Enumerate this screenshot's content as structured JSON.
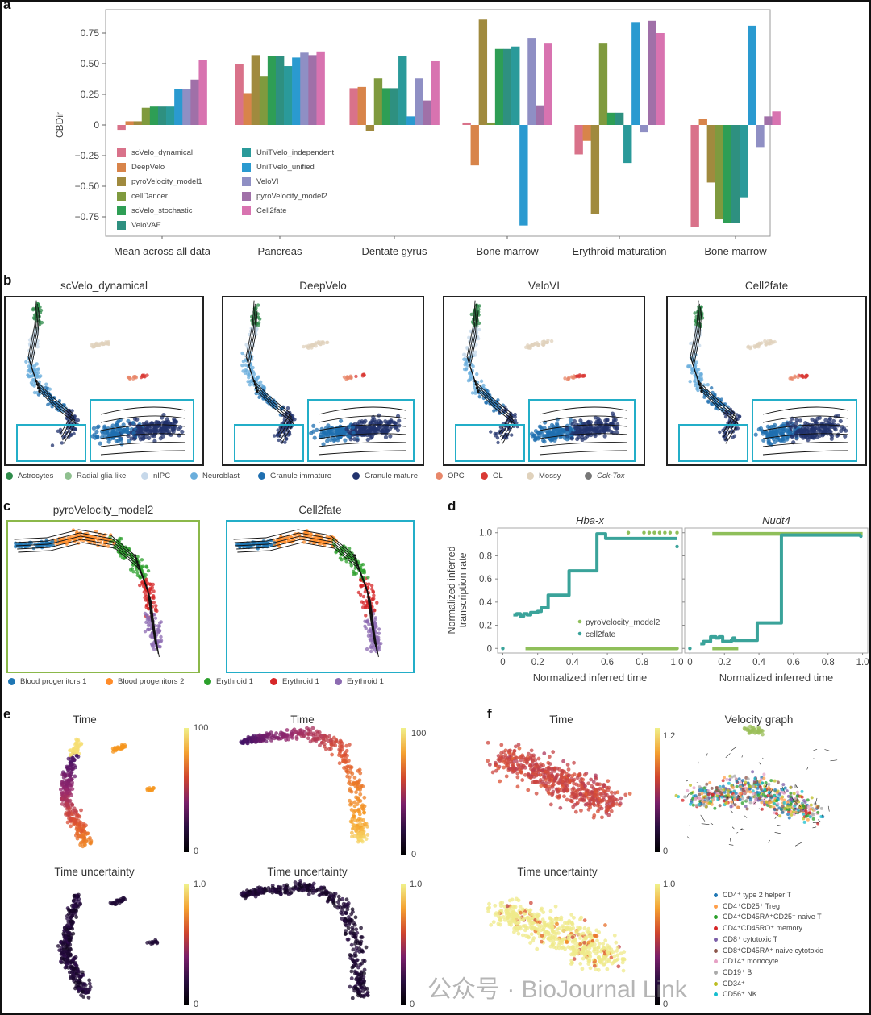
{
  "panel_labels": {
    "a": "a",
    "b": "b",
    "c": "c",
    "d": "d",
    "e": "e",
    "f": "f"
  },
  "colors": {
    "methods": [
      "#d9728a",
      "#d8844a",
      "#a08a3e",
      "#7f9a3e",
      "#2e9e55",
      "#2e9080",
      "#2a9a9a",
      "#2a9ad0",
      "#8f8fc4",
      "#a070a8",
      "#d873b0"
    ],
    "teal_frame": "#23aec8",
    "green_frame": "#8bb84a",
    "cell2fate": "#3aa39a",
    "pyro2": "#8fbf5a"
  },
  "chart_data": [
    {
      "type": "bar",
      "title": "",
      "ylabel": "CBDir",
      "xlabel": "",
      "ylim": [
        -0.9,
        0.95
      ],
      "yticks": [
        {
          "v": 0.75,
          "label": "0.75"
        },
        {
          "v": 0.5,
          "label": "0.50"
        },
        {
          "v": 0.25,
          "label": "0.25"
        },
        {
          "v": 0,
          "label": "0"
        },
        {
          "v": -0.25,
          "label": "−0.25"
        },
        {
          "v": -0.5,
          "label": "−0.50"
        },
        {
          "v": -0.75,
          "label": "−0.75"
        }
      ],
      "categories": [
        "Mean across all data",
        "Pancreas",
        "Dentate gyrus",
        "Bone marrow",
        "Erythroid maturation",
        "Bone marrow"
      ],
      "legend_position": "lower-left inside",
      "series": [
        {
          "name": "scVelo_dynamical",
          "values": [
            -0.04,
            0.5,
            0.3,
            0.02,
            -0.24,
            -0.83
          ]
        },
        {
          "name": "DeepVelo",
          "values": [
            0.03,
            0.26,
            0.31,
            -0.33,
            -0.13,
            0.05
          ]
        },
        {
          "name": "pyroVelocity_model1",
          "values": [
            0.03,
            0.57,
            -0.05,
            0.86,
            -0.73,
            -0.47
          ]
        },
        {
          "name": "cellDancer",
          "values": [
            0.14,
            0.4,
            0.38,
            0.02,
            0.67,
            -0.77
          ]
        },
        {
          "name": "scVelo_stochastic",
          "values": [
            0.15,
            0.56,
            0.3,
            0.62,
            0.1,
            -0.8
          ]
        },
        {
          "name": "VeloVAE",
          "values": [
            0.15,
            0.56,
            0.3,
            0.62,
            0.1,
            -0.8
          ]
        },
        {
          "name": "UniTVelo_independent",
          "values": [
            0.15,
            0.48,
            0.56,
            0.64,
            -0.31,
            -0.59
          ]
        },
        {
          "name": "UniTVelo_unified",
          "values": [
            0.29,
            0.55,
            0.07,
            -0.82,
            0.84,
            0.81
          ]
        },
        {
          "name": "VeloVI",
          "values": [
            0.29,
            0.59,
            0.38,
            0.71,
            -0.06,
            -0.18
          ]
        },
        {
          "name": "pyroVelocity_model2",
          "values": [
            0.37,
            0.57,
            0.2,
            0.16,
            0.85,
            0.07
          ]
        },
        {
          "name": "Cell2fate",
          "values": [
            0.53,
            0.6,
            0.52,
            0.67,
            0.75,
            0.11
          ]
        }
      ]
    },
    {
      "type": "line",
      "title": "Hba-x",
      "xlabel": "Normalized inferred time",
      "ylabel": "Normalized inferred transcription rate",
      "xlim": [
        -0.03,
        1.03
      ],
      "ylim": [
        -0.04,
        1.04
      ],
      "xticks": [
        "0",
        "0.2",
        "0.4",
        "0.6",
        "0.8",
        "1.0"
      ],
      "yticks": [
        "0",
        "0.2",
        "0.4",
        "0.6",
        "0.8",
        "1.0"
      ],
      "legend_position": "lower-right",
      "series": [
        {
          "name": "pyroVelocity_model2",
          "segments": [
            [
              [
                0.13,
                0
              ],
              [
                1.0,
                0
              ]
            ]
          ],
          "points": [
            [
              0.72,
              1.0
            ],
            [
              0.81,
              1.0
            ],
            [
              0.84,
              1.0
            ],
            [
              0.87,
              1.0
            ],
            [
              0.9,
              1.0
            ],
            [
              0.93,
              1.0
            ],
            [
              0.96,
              1.0
            ],
            [
              1.0,
              1.0
            ],
            [
              1.0,
              0
            ]
          ]
        },
        {
          "name": "cell2fate",
          "segments": [
            [
              [
                0.06,
                0.29
              ],
              [
                0.08,
                0.3
              ],
              [
                0.1,
                0.28
              ],
              [
                0.12,
                0.3
              ],
              [
                0.14,
                0.29
              ],
              [
                0.16,
                0.31
              ],
              [
                0.2,
                0.32
              ],
              [
                0.22,
                0.35
              ],
              [
                0.25,
                0.35
              ],
              [
                0.26,
                0.46
              ],
              [
                0.37,
                0.46
              ],
              [
                0.38,
                0.67
              ],
              [
                0.52,
                0.67
              ],
              [
                0.54,
                0.99
              ],
              [
                0.58,
                0.99
              ],
              [
                0.59,
                0.95
              ],
              [
                1.0,
                0.95
              ]
            ]
          ],
          "points": [
            [
              0.0,
              0.0
            ],
            [
              1.0,
              0.88
            ]
          ]
        }
      ]
    },
    {
      "type": "line",
      "title": "Nudt4",
      "xlabel": "Normalized inferred time",
      "ylabel": "",
      "xlim": [
        -0.03,
        1.03
      ],
      "ylim": [
        -0.04,
        1.04
      ],
      "xticks": [
        "0",
        "0.2",
        "0.4",
        "0.6",
        "0.8",
        "1.0"
      ],
      "series": [
        {
          "name": "pyroVelocity_model2",
          "segments": [
            [
              [
                0.13,
                0.99
              ],
              [
                1.0,
                0.99
              ]
            ],
            [
              [
                0.13,
                0.0
              ],
              [
                0.28,
                0.0
              ]
            ]
          ],
          "points": []
        },
        {
          "name": "cell2fate",
          "segments": [
            [
              [
                0.06,
                0.04
              ],
              [
                0.08,
                0.06
              ],
              [
                0.11,
                0.06
              ],
              [
                0.12,
                0.1
              ],
              [
                0.15,
                0.09
              ],
              [
                0.17,
                0.1
              ],
              [
                0.19,
                0.06
              ],
              [
                0.24,
                0.07
              ],
              [
                0.25,
                0.09
              ],
              [
                0.26,
                0.07
              ],
              [
                0.37,
                0.07
              ],
              [
                0.39,
                0.22
              ],
              [
                0.51,
                0.22
              ],
              [
                0.53,
                0.98
              ],
              [
                0.99,
                0.98
              ]
            ]
          ],
          "points": [
            [
              0.0,
              0.0
            ],
            [
              0.99,
              0.97
            ]
          ]
        }
      ]
    }
  ],
  "panel_b": {
    "titles": [
      "scVelo_dynamical",
      "DeepVelo",
      "VeloVI",
      "Cell2fate"
    ],
    "legend": [
      {
        "label": "Astrocytes",
        "color": "#2e8b4a"
      },
      {
        "label": "Radial glia like",
        "color": "#8fc08f"
      },
      {
        "label": "nIPC",
        "color": "#c6d8ea"
      },
      {
        "label": "Neuroblast",
        "color": "#6aaedc"
      },
      {
        "label": "Granule immature",
        "color": "#1f6fb0"
      },
      {
        "label": "Granule mature",
        "color": "#22336e"
      },
      {
        "label": "OPC",
        "color": "#e8876a"
      },
      {
        "label": "OL",
        "color": "#d93a35"
      },
      {
        "label": "Mossy",
        "color": "#e0d2bc"
      },
      {
        "label": "Cck-Tox",
        "color": "#777777"
      }
    ]
  },
  "panel_c": {
    "titles": [
      "pyroVelocity_model2",
      "Cell2fate"
    ],
    "legend": [
      {
        "label": "Blood progenitors 1",
        "color": "#1f77b4"
      },
      {
        "label": "Blood progenitors 2",
        "color": "#ff8c2a"
      },
      {
        "label": "Erythroid 1",
        "color": "#2ca02c"
      },
      {
        "label": "Erythroid 1",
        "color": "#d62728"
      },
      {
        "label": "Erythroid 1",
        "color": "#8c6bb1"
      }
    ]
  },
  "panel_d": {
    "legend": [
      "pyroVelocity_model2",
      "cell2fate"
    ],
    "ylabel_line1": "Normalized inferred",
    "ylabel_line2": "transcription rate"
  },
  "panel_e": {
    "time_title": "Time",
    "uncertainty_title": "Time uncertainty",
    "time_cb_max": "100",
    "time_cb_min": "0",
    "unc_cb_max": "1.0",
    "unc_cb_min": "0"
  },
  "panel_f": {
    "time_title": "Time",
    "graph_title": "Velocity graph",
    "uncertainty_title": "Time uncertainty",
    "time_cb_max": "1.2",
    "time_cb_min": "0",
    "unc_cb_max": "1.0",
    "unc_cb_min": "0",
    "legend": [
      {
        "label": "CD4⁺ type 2 helper T",
        "color": "#1f77b4"
      },
      {
        "label": "CD4⁺CD25⁺ Treg",
        "color": "#ff9f4a"
      },
      {
        "label": "CD4⁺CD45RA⁺CD25⁻ naive T",
        "color": "#2ca02c"
      },
      {
        "label": "CD4⁺CD45RO⁺ memory",
        "color": "#d62728"
      },
      {
        "label": "CD8⁺ cytotoxic T",
        "color": "#7b5ea8"
      },
      {
        "label": "CD8⁺CD45RA⁺ naive cytotoxic",
        "color": "#8c564b"
      },
      {
        "label": "CD14⁺ monocyte",
        "color": "#e6a0c4"
      },
      {
        "label": "CD19⁺ B",
        "color": "#aaa"
      },
      {
        "label": "CD34⁺",
        "color": "#bcbd22"
      },
      {
        "label": "CD56⁺ NK",
        "color": "#17becf"
      }
    ]
  },
  "watermark": "公众号 · BioJournal Link"
}
